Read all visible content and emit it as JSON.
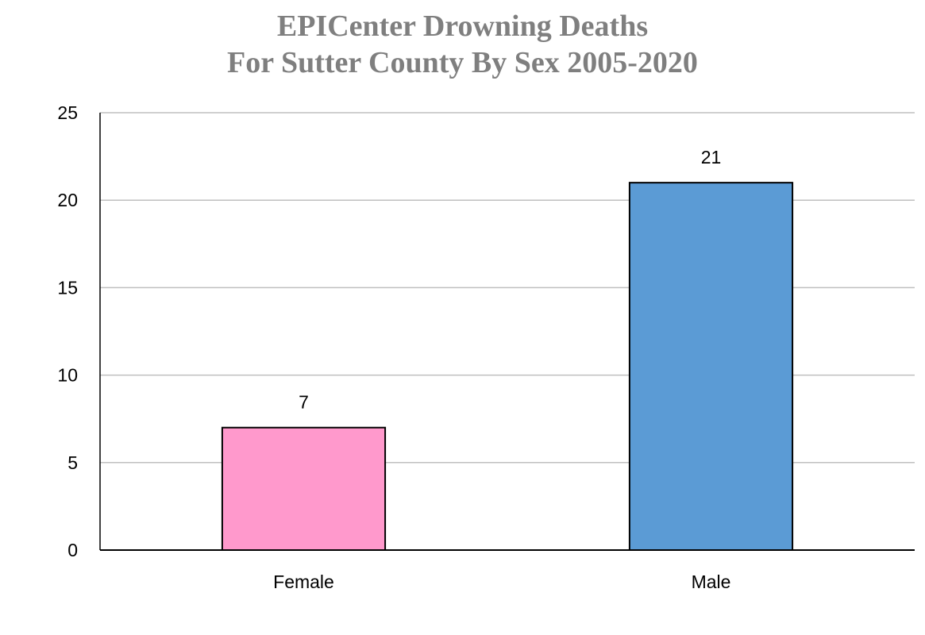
{
  "chart_data": {
    "type": "bar",
    "title_lines": [
      "EPICenter Drowning Deaths",
      "For Sutter County By Sex 2005-2020"
    ],
    "categories": [
      "Female",
      "Male"
    ],
    "values": [
      7,
      21
    ],
    "data_labels": [
      "7",
      "21"
    ],
    "colors": [
      "#ff99cc",
      "#5b9bd5"
    ],
    "y_ticks": [
      0,
      5,
      10,
      15,
      20,
      25
    ],
    "ylim": [
      0,
      25
    ],
    "xlabel": "",
    "ylabel": "",
    "grid": true,
    "title_color": "#7f7f7f",
    "gridline_color": "#bfbfbf",
    "bar_border_color": "#000000"
  }
}
